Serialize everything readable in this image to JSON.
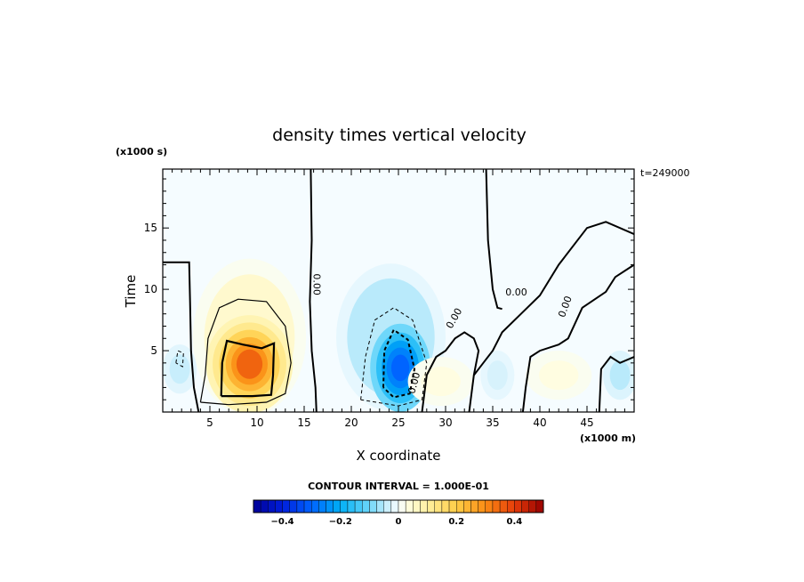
{
  "chart_data": {
    "type": "heatmap",
    "title": "density times vertical velocity",
    "xlabel": "X coordinate",
    "ylabel": "Time",
    "x_unit": "(x1000 m)",
    "y_unit": "(x1000 s)",
    "time_stamp": "t=249000",
    "xlim": [
      0,
      50
    ],
    "ylim": [
      0,
      19.8
    ],
    "x_ticks": [
      5,
      10,
      15,
      20,
      25,
      30,
      35,
      40,
      45
    ],
    "y_ticks": [
      5,
      10,
      15
    ],
    "contour_interval_label": "CONTOUR INTERVAL = 1.000E-01",
    "contour_labels": [
      {
        "text": "0.00",
        "x": 16.0,
        "y": 10.4,
        "rotate": 90
      },
      {
        "text": "0.00",
        "x": 37.5,
        "y": 9.5,
        "rotate": 0
      },
      {
        "text": "0.00",
        "x": 43.0,
        "y": 8.5,
        "rotate": -70
      },
      {
        "text": "0.00",
        "x": 31.2,
        "y": 7.5,
        "rotate": -60
      },
      {
        "text": "0.00",
        "x": 27.0,
        "y": 2.3,
        "rotate": -75
      }
    ],
    "colorbar": {
      "min": -0.5,
      "max": 0.5,
      "steps": 40,
      "tick_values": [
        -0.4,
        -0.2,
        0,
        0.2,
        0.4
      ],
      "tick_labels": [
        "−0.4",
        "−0.2",
        "0",
        "0.2",
        "0.4"
      ]
    },
    "features": [
      {
        "kind": "positive-blob",
        "x": 9.2,
        "y": 3.9,
        "peak": 0.35
      },
      {
        "kind": "negative-blob",
        "x": 25.2,
        "y": 3.6,
        "peak": -0.3
      },
      {
        "kind": "weak-positive",
        "x": 29.5,
        "y": 2.5,
        "peak": 0.03
      },
      {
        "kind": "weak-negative",
        "x": 35.5,
        "y": 3.0,
        "peak": -0.03
      },
      {
        "kind": "weak-positive",
        "x": 42.0,
        "y": 3.0,
        "peak": 0.03
      },
      {
        "kind": "weak-negative",
        "x": 1.8,
        "y": 3.5,
        "peak": -0.04
      },
      {
        "kind": "weak-negative",
        "x": 48.5,
        "y": 3.0,
        "peak": -0.05
      }
    ]
  }
}
